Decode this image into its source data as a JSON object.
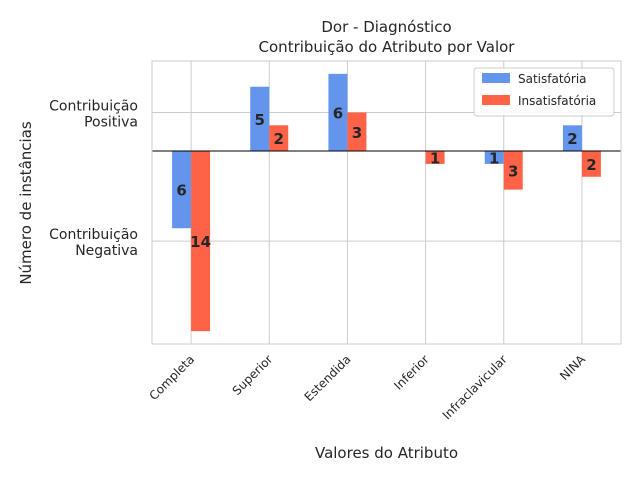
{
  "chart_data": {
    "type": "bar",
    "title": "Dor - Diagnóstico",
    "subtitle": "Contribuição do Atributo por Valor",
    "xlabel": "Valores do Atributo",
    "ylabel": "Número de instâncias",
    "categories": [
      "Completa",
      "Superior",
      "Estendida",
      "Inferior",
      "Infraclavicular",
      "NINA"
    ],
    "ytick_labels": [
      {
        "value": 3,
        "lines": [
          "Contribuição",
          "Positiva"
        ]
      },
      {
        "value": -7,
        "lines": [
          "Contribuição",
          "Negativa"
        ]
      }
    ],
    "ylim": [
      -15,
      7
    ],
    "grid": true,
    "legend_position": "top-right",
    "series": [
      {
        "name": "Satisfatória",
        "color": "#6495ED",
        "values": [
          -6,
          5,
          6,
          0,
          -1,
          2
        ],
        "labels": [
          "6",
          "5",
          "6",
          "",
          "1",
          "2"
        ]
      },
      {
        "name": "Insatisfatória",
        "color": "#FF6347",
        "values": [
          -14,
          2,
          3,
          -1,
          -3,
          -2
        ],
        "labels": [
          "14",
          "2",
          "3",
          "1",
          "3",
          "2"
        ]
      }
    ]
  }
}
